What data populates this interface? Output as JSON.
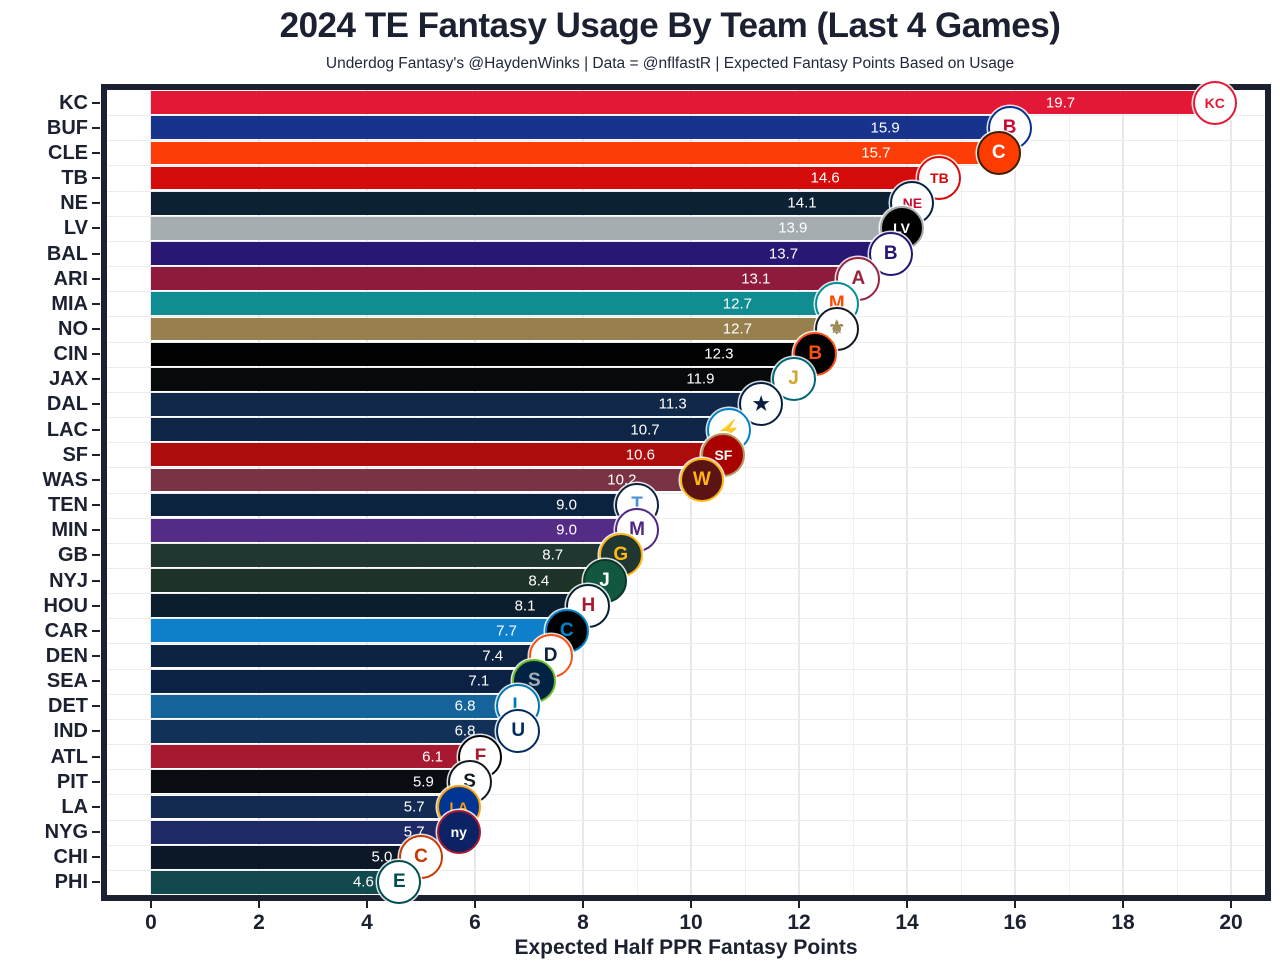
{
  "header": {
    "title": "2024 TE Fantasy Usage By Team (Last 4 Games)",
    "subtitle": "Underdog Fantasy's @HaydenWinks | Data = @nflfastR | Expected Fantasy Points Based on Usage"
  },
  "axis": {
    "xlabel": "Expected Half PPR Fantasy Points",
    "x_ticks": [
      0,
      2,
      4,
      6,
      8,
      10,
      12,
      14,
      16,
      18,
      20
    ]
  },
  "style": {
    "text_color": "#1B2130",
    "panel_border_color": "#1B2130",
    "grid_major_color": "#E8E8EA",
    "grid_minor_color": "#F0F0F2",
    "value_label_color": "#FFFFFF",
    "background": "#FFFFFF"
  },
  "chart_data": {
    "type": "bar",
    "orientation": "horizontal",
    "title": "2024 TE Fantasy Usage By Team (Last 4 Games)",
    "subtitle": "Underdog Fantasy's @HaydenWinks | Data = @nflfastR | Expected Fantasy Points Based on Usage",
    "xlabel": "Expected Half PPR Fantasy Points",
    "ylabel": "",
    "xlim": [
      0,
      20.6
    ],
    "grid": "on",
    "legend": "none",
    "value_labels": "inside bar, white, one decimal",
    "categories": [
      "KC",
      "BUF",
      "CLE",
      "TB",
      "NE",
      "LV",
      "BAL",
      "ARI",
      "MIA",
      "NO",
      "CIN",
      "JAX",
      "DAL",
      "LAC",
      "SF",
      "WAS",
      "TEN",
      "MIN",
      "GB",
      "NYJ",
      "HOU",
      "CAR",
      "DEN",
      "SEA",
      "DET",
      "IND",
      "ATL",
      "PIT",
      "LA",
      "NYG",
      "CHI",
      "PHI"
    ],
    "values": [
      19.7,
      15.9,
      15.7,
      14.6,
      14.1,
      13.9,
      13.7,
      13.1,
      12.7,
      12.7,
      12.3,
      11.9,
      11.3,
      10.7,
      10.6,
      10.2,
      9.0,
      9.0,
      8.7,
      8.4,
      8.1,
      7.7,
      7.4,
      7.1,
      6.8,
      6.8,
      6.1,
      5.9,
      5.7,
      5.7,
      5.0,
      4.6
    ],
    "bars": [
      {
        "team": "KC",
        "value": 19.7,
        "color": "#E31837",
        "logo": {
          "text": "KC",
          "bg": "#FFFFFF",
          "border": "#E31837",
          "color": "#E31837"
        }
      },
      {
        "team": "BUF",
        "value": 15.9,
        "color": "#17338B",
        "logo": {
          "text": "B",
          "bg": "#FFFFFF",
          "border": "#00338D",
          "color": "#C60C30"
        }
      },
      {
        "team": "CLE",
        "value": 15.7,
        "color": "#FD3C08",
        "logo": {
          "text": "C",
          "bg": "#FF3C00",
          "border": "#3D1F00",
          "color": "#FFFFFF"
        }
      },
      {
        "team": "TB",
        "value": 14.6,
        "color": "#D50A0A",
        "logo": {
          "text": "TB",
          "bg": "#FFFFFF",
          "border": "#D50A0A",
          "color": "#D50A0A"
        }
      },
      {
        "team": "NE",
        "value": 14.1,
        "color": "#0C2133",
        "logo": {
          "text": "NE",
          "bg": "#FFFFFF",
          "border": "#002244",
          "color": "#C60C30"
        }
      },
      {
        "team": "LV",
        "value": 13.9,
        "color": "#A5ACAF",
        "logo": {
          "text": "LV",
          "bg": "#000000",
          "border": "#A5ACAF",
          "color": "#FFFFFF"
        }
      },
      {
        "team": "BAL",
        "value": 13.7,
        "color": "#2A1773",
        "logo": {
          "text": "B",
          "bg": "#FFFFFF",
          "border": "#241773",
          "color": "#241773"
        }
      },
      {
        "team": "ARI",
        "value": 13.1,
        "color": "#8E1A3C",
        "logo": {
          "text": "A",
          "bg": "#FFFFFF",
          "border": "#97233F",
          "color": "#97233F"
        }
      },
      {
        "team": "MIA",
        "value": 12.7,
        "color": "#0F8D92",
        "logo": {
          "text": "M",
          "bg": "#FFFFFF",
          "border": "#008E97",
          "color": "#FC4C02"
        }
      },
      {
        "team": "NO",
        "value": 12.7,
        "color": "#97804E",
        "logo": {
          "text": "⚜",
          "bg": "#FFFFFF",
          "border": "#101820",
          "color": "#9F8958"
        }
      },
      {
        "team": "CIN",
        "value": 12.3,
        "color": "#010101",
        "logo": {
          "text": "B",
          "bg": "#000000",
          "border": "#FB4F14",
          "color": "#FB4F14"
        }
      },
      {
        "team": "JAX",
        "value": 11.9,
        "color": "#070A0B",
        "logo": {
          "text": "J",
          "bg": "#FFFFFF",
          "border": "#006778",
          "color": "#D7A22A"
        }
      },
      {
        "team": "DAL",
        "value": 11.3,
        "color": "#122849",
        "logo": {
          "text": "★",
          "bg": "#FFFFFF",
          "border": "#041E42",
          "color": "#041E42"
        }
      },
      {
        "team": "LAC",
        "value": 10.7,
        "color": "#0F2546",
        "logo": {
          "text": "⚡",
          "bg": "#FFFFFF",
          "border": "#0080C6",
          "color": "#FFC20E"
        }
      },
      {
        "team": "SF",
        "value": 10.6,
        "color": "#AD0C0C",
        "logo": {
          "text": "SF",
          "bg": "#AA0000",
          "border": "#B3995D",
          "color": "#FFFFFF"
        }
      },
      {
        "team": "WAS",
        "value": 10.2,
        "color": "#7A3245",
        "logo": {
          "text": "W",
          "bg": "#5A1414",
          "border": "#FFB612",
          "color": "#FFB612"
        }
      },
      {
        "team": "TEN",
        "value": 9.0,
        "color": "#0C2340",
        "logo": {
          "text": "T",
          "bg": "#FFFFFF",
          "border": "#0C2340",
          "color": "#4B92DB"
        }
      },
      {
        "team": "MIN",
        "value": 9.0,
        "color": "#552C85",
        "logo": {
          "text": "M",
          "bg": "#FFFFFF",
          "border": "#4F2683",
          "color": "#4F2683"
        }
      },
      {
        "team": "GB",
        "value": 8.7,
        "color": "#203731",
        "logo": {
          "text": "G",
          "bg": "#203731",
          "border": "#FFB612",
          "color": "#FFB612"
        }
      },
      {
        "team": "NYJ",
        "value": 8.4,
        "color": "#1E3328",
        "logo": {
          "text": "J",
          "bg": "#125740",
          "border": "#0B3527",
          "color": "#FFFFFF"
        }
      },
      {
        "team": "HOU",
        "value": 8.1,
        "color": "#0B1E2D",
        "logo": {
          "text": "H",
          "bg": "#FFFFFF",
          "border": "#03202F",
          "color": "#A71930"
        }
      },
      {
        "team": "CAR",
        "value": 7.7,
        "color": "#0E7FCB",
        "logo": {
          "text": "C",
          "bg": "#000000",
          "border": "#0085CA",
          "color": "#0085CA"
        }
      },
      {
        "team": "DEN",
        "value": 7.4,
        "color": "#0C2342",
        "logo": {
          "text": "D",
          "bg": "#FFFFFF",
          "border": "#FB4F14",
          "color": "#0A2343"
        }
      },
      {
        "team": "SEA",
        "value": 7.1,
        "color": "#0B2244",
        "logo": {
          "text": "S",
          "bg": "#002244",
          "border": "#69BE28",
          "color": "#A5ACAF"
        }
      },
      {
        "team": "DET",
        "value": 6.8,
        "color": "#14639B",
        "logo": {
          "text": "L",
          "bg": "#FFFFFF",
          "border": "#0076B6",
          "color": "#0076B6"
        }
      },
      {
        "team": "IND",
        "value": 6.8,
        "color": "#113159",
        "logo": {
          "text": "U",
          "bg": "#FFFFFF",
          "border": "#002C5F",
          "color": "#002C5F"
        }
      },
      {
        "team": "ATL",
        "value": 6.1,
        "color": "#A71930",
        "logo": {
          "text": "F",
          "bg": "#FFFFFF",
          "border": "#000000",
          "color": "#A71930"
        }
      },
      {
        "team": "PIT",
        "value": 5.9,
        "color": "#090C10",
        "logo": {
          "text": "S",
          "bg": "#FFFFFF",
          "border": "#101820",
          "color": "#101820"
        }
      },
      {
        "team": "LA",
        "value": 5.7,
        "color": "#132A52",
        "logo": {
          "text": "LA",
          "bg": "#003594",
          "border": "#FFA300",
          "color": "#FFA300"
        }
      },
      {
        "team": "NYG",
        "value": 5.7,
        "color": "#1E2A66",
        "logo": {
          "text": "ny",
          "bg": "#0B2265",
          "border": "#A71930",
          "color": "#FFFFFF"
        }
      },
      {
        "team": "CHI",
        "value": 5.0,
        "color": "#0C1728",
        "logo": {
          "text": "C",
          "bg": "#FFFFFF",
          "border": "#C83803",
          "color": "#C83803"
        }
      },
      {
        "team": "PHI",
        "value": 4.6,
        "color": "#11494F",
        "logo": {
          "text": "E",
          "bg": "#FFFFFF",
          "border": "#004C54",
          "color": "#004C54"
        }
      }
    ]
  }
}
